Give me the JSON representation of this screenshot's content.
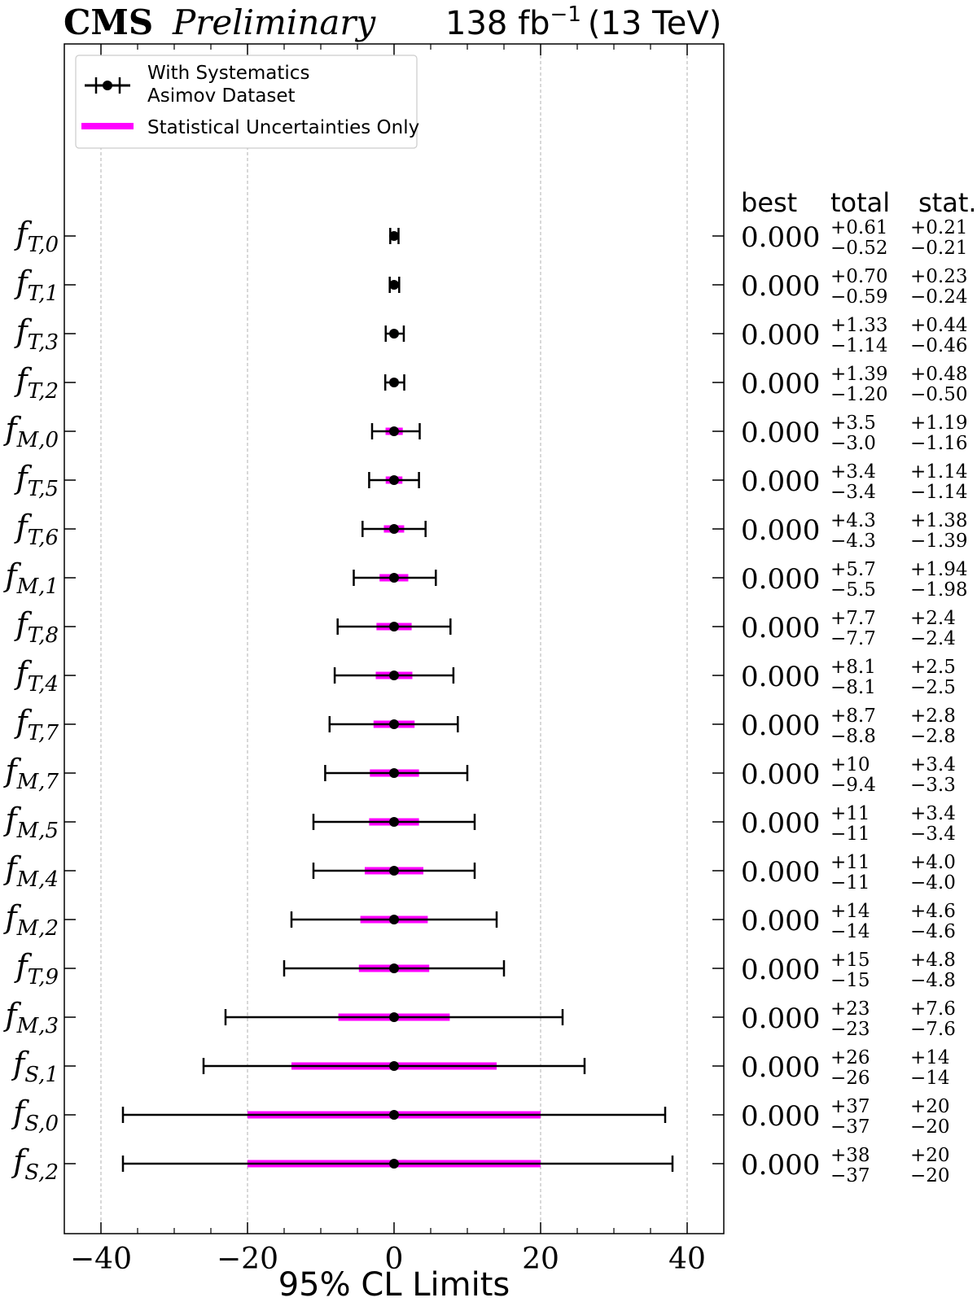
{
  "header": {
    "experiment": "CMS",
    "status": "Preliminary",
    "luminosity": "138 fb",
    "luminosity_exponent": "−1",
    "energy": "(13 TeV)"
  },
  "legend": {
    "position": "top-left",
    "with_syst_line1": "With Systematics",
    "with_syst_line2": "Asimov Dataset",
    "stat_only": "Statistical Uncertainties Only"
  },
  "table_headers": {
    "best": "best",
    "total": "total",
    "stat": "stat."
  },
  "colors": {
    "total": "#000000",
    "stat": "#ff00ff",
    "grid": "#b0b0b0",
    "frame": "#000000"
  },
  "chart_data": {
    "type": "scatter",
    "title": "",
    "xlabel": "95% CL Limits",
    "ylabel": "",
    "xlim": [
      -45,
      45
    ],
    "xticks": [
      -40,
      -20,
      0,
      20,
      40
    ],
    "xtick_labels": [
      "−40",
      "−20",
      "0",
      "20",
      "40"
    ],
    "grid": "x",
    "rows": [
      {
        "base": "f",
        "sub": "T,0",
        "best": "0.000",
        "tot_up": "+0.61",
        "tot_dn": "−0.52",
        "st_up": "+0.21",
        "st_dn": "−0.21",
        "t_lo": -0.52,
        "t_hi": 0.61,
        "s_lo": -0.21,
        "s_hi": 0.21
      },
      {
        "base": "f",
        "sub": "T,1",
        "best": "0.000",
        "tot_up": "+0.70",
        "tot_dn": "−0.59",
        "st_up": "+0.23",
        "st_dn": "−0.24",
        "t_lo": -0.59,
        "t_hi": 0.7,
        "s_lo": -0.24,
        "s_hi": 0.23
      },
      {
        "base": "f",
        "sub": "T,3",
        "best": "0.000",
        "tot_up": "+1.33",
        "tot_dn": "−1.14",
        "st_up": "+0.44",
        "st_dn": "−0.46",
        "t_lo": -1.14,
        "t_hi": 1.33,
        "s_lo": -0.46,
        "s_hi": 0.44
      },
      {
        "base": "f",
        "sub": "T,2",
        "best": "0.000",
        "tot_up": "+1.39",
        "tot_dn": "−1.20",
        "st_up": "+0.48",
        "st_dn": "−0.50",
        "t_lo": -1.2,
        "t_hi": 1.39,
        "s_lo": -0.5,
        "s_hi": 0.48
      },
      {
        "base": "f",
        "sub": "M,0",
        "best": "0.000",
        "tot_up": "+3.5",
        "tot_dn": "−3.0",
        "st_up": "+1.19",
        "st_dn": "−1.16",
        "t_lo": -3.0,
        "t_hi": 3.5,
        "s_lo": -1.16,
        "s_hi": 1.19
      },
      {
        "base": "f",
        "sub": "T,5",
        "best": "0.000",
        "tot_up": "+3.4",
        "tot_dn": "−3.4",
        "st_up": "+1.14",
        "st_dn": "−1.14",
        "t_lo": -3.4,
        "t_hi": 3.4,
        "s_lo": -1.14,
        "s_hi": 1.14
      },
      {
        "base": "f",
        "sub": "T,6",
        "best": "0.000",
        "tot_up": "+4.3",
        "tot_dn": "−4.3",
        "st_up": "+1.38",
        "st_dn": "−1.39",
        "t_lo": -4.3,
        "t_hi": 4.3,
        "s_lo": -1.39,
        "s_hi": 1.38
      },
      {
        "base": "f",
        "sub": "M,1",
        "best": "0.000",
        "tot_up": "+5.7",
        "tot_dn": "−5.5",
        "st_up": "+1.94",
        "st_dn": "−1.98",
        "t_lo": -5.5,
        "t_hi": 5.7,
        "s_lo": -1.98,
        "s_hi": 1.94
      },
      {
        "base": "f",
        "sub": "T,8",
        "best": "0.000",
        "tot_up": "+7.7",
        "tot_dn": "−7.7",
        "st_up": "+2.4",
        "st_dn": "−2.4",
        "t_lo": -7.7,
        "t_hi": 7.7,
        "s_lo": -2.4,
        "s_hi": 2.4
      },
      {
        "base": "f",
        "sub": "T,4",
        "best": "0.000",
        "tot_up": "+8.1",
        "tot_dn": "−8.1",
        "st_up": "+2.5",
        "st_dn": "−2.5",
        "t_lo": -8.1,
        "t_hi": 8.1,
        "s_lo": -2.5,
        "s_hi": 2.5
      },
      {
        "base": "f",
        "sub": "T,7",
        "best": "0.000",
        "tot_up": "+8.7",
        "tot_dn": "−8.8",
        "st_up": "+2.8",
        "st_dn": "−2.8",
        "t_lo": -8.8,
        "t_hi": 8.7,
        "s_lo": -2.8,
        "s_hi": 2.8
      },
      {
        "base": "f",
        "sub": "M,7",
        "best": "0.000",
        "tot_up": "+10",
        "tot_dn": "−9.4",
        "st_up": "+3.4",
        "st_dn": "−3.3",
        "t_lo": -9.4,
        "t_hi": 10,
        "s_lo": -3.3,
        "s_hi": 3.4
      },
      {
        "base": "f",
        "sub": "M,5",
        "best": "0.000",
        "tot_up": "+11",
        "tot_dn": "−11",
        "st_up": "+3.4",
        "st_dn": "−3.4",
        "t_lo": -11,
        "t_hi": 11,
        "s_lo": -3.4,
        "s_hi": 3.4
      },
      {
        "base": "f",
        "sub": "M,4",
        "best": "0.000",
        "tot_up": "+11",
        "tot_dn": "−11",
        "st_up": "+4.0",
        "st_dn": "−4.0",
        "t_lo": -11,
        "t_hi": 11,
        "s_lo": -4.0,
        "s_hi": 4.0
      },
      {
        "base": "f",
        "sub": "M,2",
        "best": "0.000",
        "tot_up": "+14",
        "tot_dn": "−14",
        "st_up": "+4.6",
        "st_dn": "−4.6",
        "t_lo": -14,
        "t_hi": 14,
        "s_lo": -4.6,
        "s_hi": 4.6
      },
      {
        "base": "f",
        "sub": "T,9",
        "best": "0.000",
        "tot_up": "+15",
        "tot_dn": "−15",
        "st_up": "+4.8",
        "st_dn": "−4.8",
        "t_lo": -15,
        "t_hi": 15,
        "s_lo": -4.8,
        "s_hi": 4.8
      },
      {
        "base": "f",
        "sub": "M,3",
        "best": "0.000",
        "tot_up": "+23",
        "tot_dn": "−23",
        "st_up": "+7.6",
        "st_dn": "−7.6",
        "t_lo": -23,
        "t_hi": 23,
        "s_lo": -7.6,
        "s_hi": 7.6
      },
      {
        "base": "f",
        "sub": "S,1",
        "best": "0.000",
        "tot_up": "+26",
        "tot_dn": "−26",
        "st_up": "+14",
        "st_dn": "−14",
        "t_lo": -26,
        "t_hi": 26,
        "s_lo": -14,
        "s_hi": 14
      },
      {
        "base": "f",
        "sub": "S,0",
        "best": "0.000",
        "tot_up": "+37",
        "tot_dn": "−37",
        "st_up": "+20",
        "st_dn": "−20",
        "t_lo": -37,
        "t_hi": 37,
        "s_lo": -20,
        "s_hi": 20
      },
      {
        "base": "f",
        "sub": "S,2",
        "best": "0.000",
        "tot_up": "+38",
        "tot_dn": "−37",
        "st_up": "+20",
        "st_dn": "−20",
        "t_lo": -37,
        "t_hi": 38,
        "s_lo": -20,
        "s_hi": 20
      }
    ]
  }
}
